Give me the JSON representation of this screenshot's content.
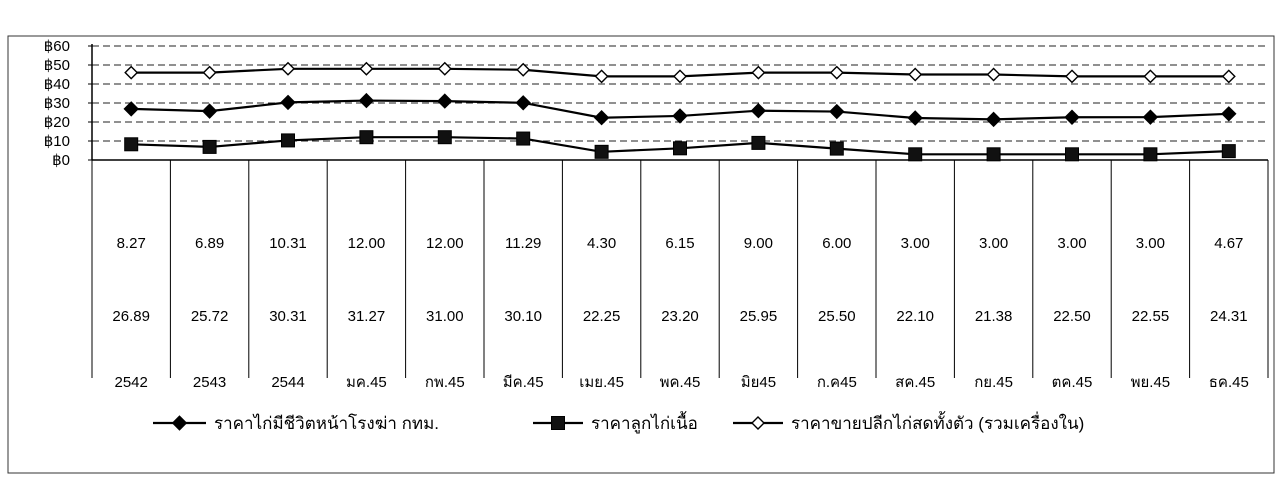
{
  "chart_data": {
    "type": "line",
    "y_tick_labels": [
      "฿0",
      "฿10",
      "฿20",
      "฿30",
      "฿40",
      "฿50",
      "฿60"
    ],
    "ylim": [
      0,
      60
    ],
    "grid": "dashed horizontal lines at every 10",
    "legend_position": "bottom",
    "categories": [
      "2542",
      "2543",
      "2544",
      "มค.45",
      "กพ.45",
      "มีค.45",
      "เมย.45",
      "พค.45",
      "มิย45",
      "ก.ค45",
      "สค.45",
      "กย.45",
      "ตค.45",
      "พย.45",
      "ธค.45"
    ],
    "series": [
      {
        "name": "ราคาไก่มีชีวิตหน้าโรงฆ่า กทม.",
        "marker": "filled-diamond",
        "color": "#000000",
        "values": [
          26.89,
          25.72,
          30.31,
          31.27,
          31.0,
          30.1,
          22.25,
          23.2,
          25.95,
          25.5,
          22.1,
          21.38,
          22.5,
          22.55,
          24.31
        ],
        "value_labels": [
          "26.89",
          "25.72",
          "30.31",
          "31.27",
          "31.00",
          "30.10",
          "22.25",
          "23.20",
          "25.95",
          "25.50",
          "22.10",
          "21.38",
          "22.50",
          "22.55",
          "24.31"
        ]
      },
      {
        "name": "ราคาลูกไก่เนื้อ",
        "marker": "filled-square",
        "color": "#000000",
        "values": [
          8.27,
          6.89,
          10.31,
          12.0,
          12.0,
          11.29,
          4.3,
          6.15,
          9.0,
          6.0,
          3.0,
          3.0,
          3.0,
          3.0,
          4.67
        ],
        "value_labels": [
          "8.27",
          "6.89",
          "10.31",
          "12.00",
          "12.00",
          "11.29",
          "4.30",
          "6.15",
          "9.00",
          "6.00",
          "3.00",
          "3.00",
          "3.00",
          "3.00",
          "4.67"
        ]
      },
      {
        "name": "ราคาขายปลีกไก่สดทั้งตัว  (รวมเครื่องใน)",
        "marker": "hollow-diamond",
        "color": "#000000",
        "values": [
          46,
          46,
          48,
          48,
          48,
          47.5,
          44,
          44,
          46,
          46,
          45,
          45,
          44,
          44,
          44
        ]
      }
    ]
  }
}
